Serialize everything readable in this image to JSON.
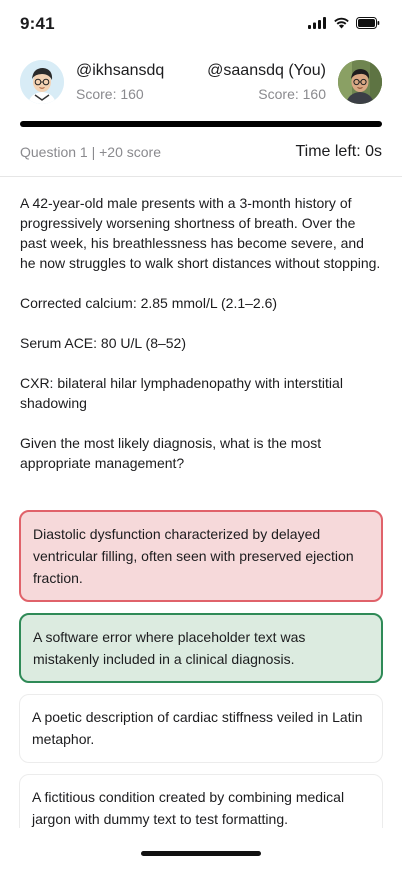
{
  "status_bar": {
    "time": "9:41"
  },
  "players": {
    "left": {
      "handle": "@ikhsansdq",
      "score": "Score: 160"
    },
    "right": {
      "handle": "@saansdq (You)",
      "score": "Score: 160"
    }
  },
  "quiz": {
    "question_meta": "Question 1 | +20 score",
    "time_left": "Time left: 0s",
    "progress": 1.0
  },
  "question": {
    "stem": "A  42-year-old male presents with a 3-month history of progressively worsening shortness of breath. Over the past week, his breathlessness has become severe, and he now struggles to walk short distances without stopping.",
    "lab_calcium": "Corrected calcium: 2.85 mmol/L (2.1–2.6)",
    "lab_ace": "Serum ACE: 80 U/L (8–52)",
    "cxr": "CXR: bilateral hilar lymphadenopathy with interstitial shadowing",
    "prompt": "Given the most likely diagnosis, what is the most appropriate management?"
  },
  "options": [
    {
      "text": "Diastolic dysfunction characterized by delayed ventricular filling, often seen with preserved ejection fraction.",
      "state": "wrong"
    },
    {
      "text": "A software error where placeholder text was mistakenly included in a clinical diagnosis.",
      "state": "correct"
    },
    {
      "text": "A poetic description of cardiac stiffness veiled in Latin metaphor.",
      "state": "neutral"
    },
    {
      "text": "A fictitious condition created by combining medical jargon with dummy text to test formatting.",
      "state": "neutral"
    }
  ],
  "colors": {
    "wrong_bg": "#f6d9da",
    "wrong_border": "#e0626a",
    "correct_bg": "#dcebe0",
    "correct_border": "#2f8a57"
  },
  "icons": [
    "signal-icon",
    "wifi-icon",
    "battery-icon"
  ]
}
